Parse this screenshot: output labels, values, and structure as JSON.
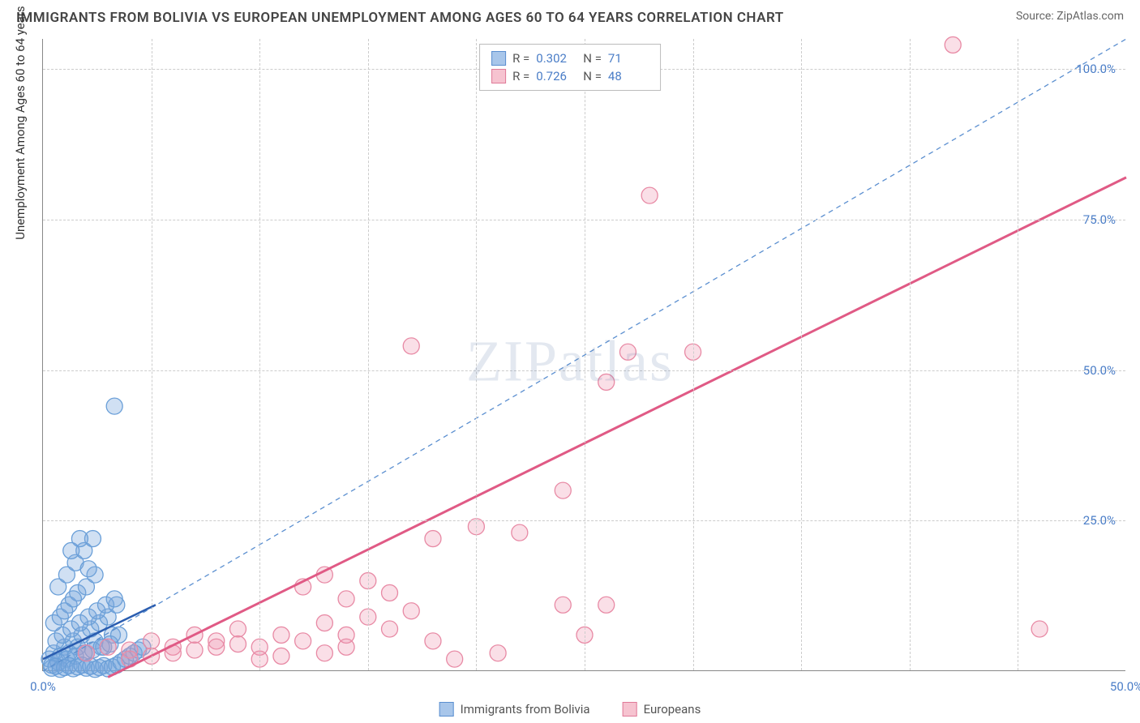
{
  "header": {
    "title": "IMMIGRANTS FROM BOLIVIA VS EUROPEAN UNEMPLOYMENT AMONG AGES 60 TO 64 YEARS CORRELATION CHART",
    "source": "Source: ZipAtlas.com"
  },
  "watermark": "ZIPatlas",
  "chart": {
    "type": "scatter",
    "xlim": [
      0,
      50
    ],
    "ylim": [
      0,
      105
    ],
    "xtick_labels": [
      "0.0%",
      "50.0%"
    ],
    "xtick_positions": [
      0,
      50
    ],
    "xtick_minors": [
      5,
      10,
      15,
      20,
      25,
      30,
      35,
      40,
      45
    ],
    "ytick_labels": [
      "25.0%",
      "50.0%",
      "75.0%",
      "100.0%"
    ],
    "ytick_positions": [
      25,
      50,
      75,
      100
    ],
    "yaxis_title": "Unemployment Among Ages 60 to 64 years",
    "background_color": "#ffffff",
    "grid_color": "#d0d0d0",
    "axis_color": "#888888",
    "series": [
      {
        "name": "Immigrants from Bolivia",
        "color_fill": "rgba(120,165,220,0.35)",
        "color_stroke": "#6a9fd8",
        "swatch_fill": "#a8c6ea",
        "swatch_stroke": "#5b8fd0",
        "marker_radius": 10,
        "R": "0.302",
        "N": "71",
        "trend": {
          "x1": 0,
          "y1": 2,
          "x2": 5.2,
          "y2": 11,
          "stroke": "#2a5db0",
          "width": 2.5,
          "dash": "none"
        },
        "ref_line": {
          "x1": 0,
          "y1": 0,
          "x2": 50,
          "y2": 105,
          "stroke": "#5b8fd0",
          "width": 1.3,
          "dash": "6,5"
        },
        "points": [
          [
            0.3,
            2
          ],
          [
            0.5,
            3
          ],
          [
            0.8,
            2.5
          ],
          [
            1.0,
            4
          ],
          [
            1.2,
            3
          ],
          [
            1.4,
            5
          ],
          [
            1.6,
            4
          ],
          [
            1.8,
            6
          ],
          [
            2.0,
            3
          ],
          [
            2.2,
            7
          ],
          [
            2.4,
            5
          ],
          [
            2.6,
            8
          ],
          [
            2.8,
            4
          ],
          [
            3.0,
            9
          ],
          [
            3.2,
            6
          ],
          [
            3.4,
            11
          ],
          [
            0.4,
            1
          ],
          [
            0.7,
            1.5
          ],
          [
            1.1,
            2
          ],
          [
            1.5,
            2.5
          ],
          [
            1.9,
            3
          ],
          [
            2.3,
            3.5
          ],
          [
            2.7,
            4
          ],
          [
            3.1,
            4.5
          ],
          [
            0.6,
            5
          ],
          [
            0.9,
            6
          ],
          [
            1.3,
            7
          ],
          [
            1.7,
            8
          ],
          [
            2.1,
            9
          ],
          [
            2.5,
            10
          ],
          [
            2.9,
            11
          ],
          [
            3.3,
            12
          ],
          [
            0.5,
            8
          ],
          [
            0.8,
            9
          ],
          [
            1.2,
            11
          ],
          [
            1.6,
            13
          ],
          [
            2.0,
            14
          ],
          [
            2.4,
            16
          ],
          [
            1.0,
            10
          ],
          [
            1.4,
            12
          ],
          [
            0.7,
            14
          ],
          [
            1.1,
            16
          ],
          [
            1.5,
            18
          ],
          [
            1.9,
            20
          ],
          [
            2.3,
            22
          ],
          [
            1.3,
            20
          ],
          [
            1.7,
            22
          ],
          [
            2.1,
            17
          ],
          [
            0.4,
            0.5
          ],
          [
            0.6,
            0.8
          ],
          [
            0.8,
            0.3
          ],
          [
            1.0,
            0.6
          ],
          [
            1.2,
            0.9
          ],
          [
            1.4,
            0.4
          ],
          [
            1.6,
            0.7
          ],
          [
            1.8,
            1.0
          ],
          [
            2.0,
            0.5
          ],
          [
            2.2,
            0.8
          ],
          [
            2.4,
            0.3
          ],
          [
            2.6,
            0.6
          ],
          [
            2.8,
            0.9
          ],
          [
            3.0,
            0.4
          ],
          [
            3.2,
            0.7
          ],
          [
            3.4,
            1.0
          ],
          [
            3.6,
            1.5
          ],
          [
            3.8,
            2
          ],
          [
            4.0,
            2.5
          ],
          [
            4.2,
            3
          ],
          [
            4.4,
            3.5
          ],
          [
            4.6,
            4
          ],
          [
            3.3,
            44
          ],
          [
            3.5,
            6
          ]
        ]
      },
      {
        "name": "Europeans",
        "color_fill": "rgba(240,150,175,0.30)",
        "color_stroke": "#e88aa5",
        "swatch_fill": "#f6c3d0",
        "swatch_stroke": "#e07a98",
        "marker_radius": 10,
        "R": "0.726",
        "N": "48",
        "trend": {
          "x1": 3,
          "y1": -1,
          "x2": 50,
          "y2": 82,
          "stroke": "#e05a85",
          "width": 3,
          "dash": "none"
        },
        "points": [
          [
            2,
            3
          ],
          [
            3,
            4
          ],
          [
            4,
            3.5
          ],
          [
            5,
            5
          ],
          [
            6,
            4
          ],
          [
            7,
            6
          ],
          [
            8,
            5
          ],
          [
            9,
            7
          ],
          [
            10,
            4
          ],
          [
            11,
            6
          ],
          [
            12,
            5
          ],
          [
            13,
            8
          ],
          [
            14,
            6
          ],
          [
            15,
            9
          ],
          [
            16,
            7
          ],
          [
            17,
            10
          ],
          [
            4,
            2
          ],
          [
            5,
            2.5
          ],
          [
            6,
            3
          ],
          [
            7,
            3.5
          ],
          [
            8,
            4
          ],
          [
            9,
            4.5
          ],
          [
            10,
            2
          ],
          [
            11,
            2.5
          ],
          [
            12,
            14
          ],
          [
            13,
            16
          ],
          [
            14,
            12
          ],
          [
            15,
            15
          ],
          [
            16,
            13
          ],
          [
            18,
            22
          ],
          [
            20,
            24
          ],
          [
            22,
            23
          ],
          [
            24,
            30
          ],
          [
            24,
            11
          ],
          [
            26,
            11
          ],
          [
            26,
            48
          ],
          [
            27,
            53
          ],
          [
            25,
            6
          ],
          [
            19,
            2
          ],
          [
            21,
            3
          ],
          [
            17,
            54
          ],
          [
            28,
            79
          ],
          [
            42,
            104
          ],
          [
            30,
            53
          ],
          [
            18,
            5
          ],
          [
            13,
            3
          ],
          [
            14,
            4
          ],
          [
            46,
            7
          ]
        ]
      }
    ]
  },
  "legend_bottom": {
    "items": [
      {
        "label": "Immigrants from Bolivia",
        "swatch_fill": "#a8c6ea",
        "swatch_stroke": "#5b8fd0"
      },
      {
        "label": "Europeans",
        "swatch_fill": "#f6c3d0",
        "swatch_stroke": "#e07a98"
      }
    ]
  }
}
